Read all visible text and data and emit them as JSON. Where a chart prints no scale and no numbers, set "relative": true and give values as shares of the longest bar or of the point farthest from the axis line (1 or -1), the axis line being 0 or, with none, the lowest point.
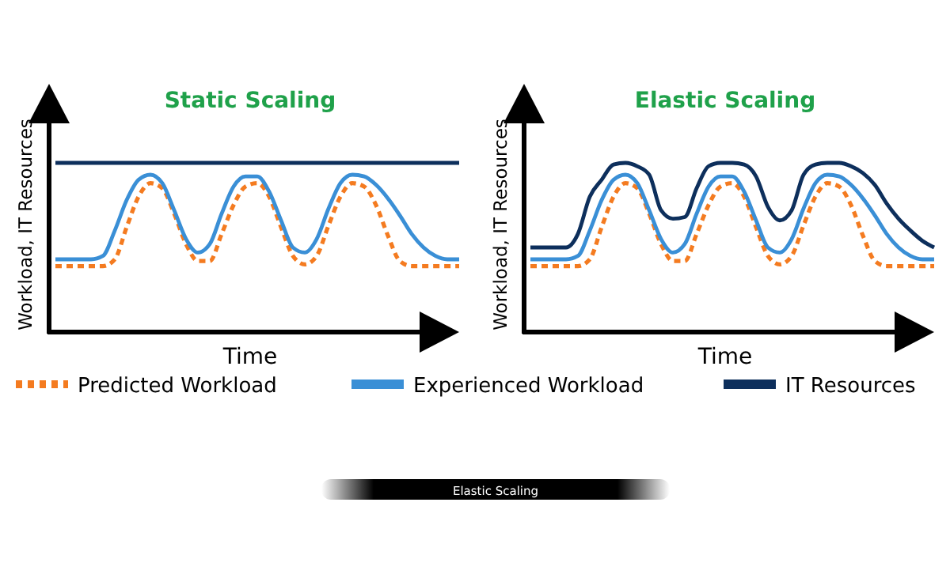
{
  "chart_data": [
    {
      "type": "line",
      "title": "Static Scaling",
      "xlabel": "Time",
      "ylabel": "Workload, IT Resources",
      "relative": true,
      "legend": "bottom",
      "categories": [
        null,
        null,
        null,
        null,
        null,
        null,
        null,
        null,
        null,
        null,
        null,
        null,
        null,
        null,
        null,
        null,
        null,
        null,
        null,
        null,
        null,
        null,
        null,
        null,
        null,
        null,
        null,
        null,
        null,
        null,
        null,
        null,
        null,
        null,
        null
      ],
      "series": [
        {
          "name": "Predicted Workload",
          "color": "#f47b20",
          "line_style": "dashed",
          "values": [
            0.39,
            0.39,
            0.39,
            0.39,
            0.39,
            0.43,
            0.62,
            0.8,
            0.88,
            0.85,
            0.7,
            0.52,
            0.42,
            0.42,
            0.58,
            0.75,
            0.86,
            0.88,
            0.8,
            0.62,
            0.45,
            0.4,
            0.45,
            0.63,
            0.8,
            0.88,
            0.86,
            0.75,
            0.57,
            0.42,
            0.39,
            0.39,
            0.39,
            0.39,
            0.39
          ]
        },
        {
          "name": "Experienced Workload",
          "color": "#3a8fd6",
          "line_style": "solid",
          "values": [
            0.43,
            0.43,
            0.43,
            0.43,
            0.45,
            0.6,
            0.78,
            0.9,
            0.93,
            0.88,
            0.72,
            0.55,
            0.47,
            0.52,
            0.7,
            0.86,
            0.92,
            0.92,
            0.83,
            0.66,
            0.5,
            0.47,
            0.55,
            0.73,
            0.88,
            0.93,
            0.92,
            0.87,
            0.79,
            0.69,
            0.58,
            0.5,
            0.45,
            0.43,
            0.43
          ]
        },
        {
          "name": "IT Resources",
          "color": "#0d2f5c",
          "line_style": "solid",
          "values": [
            1,
            1,
            1,
            1,
            1,
            1,
            1,
            1,
            1,
            1,
            1,
            1,
            1,
            1,
            1,
            1,
            1,
            1,
            1,
            1,
            1,
            1,
            1,
            1,
            1,
            1,
            1,
            1,
            1,
            1,
            1,
            1,
            1,
            1,
            1
          ]
        }
      ]
    },
    {
      "type": "line",
      "title": "Elastic Scaling",
      "xlabel": "Time",
      "ylabel": "Workload, IT Resources",
      "relative": true,
      "annotations": [
        "Elastic Scaling"
      ],
      "categories": [
        null,
        null,
        null,
        null,
        null,
        null,
        null,
        null,
        null,
        null,
        null,
        null,
        null,
        null,
        null,
        null,
        null,
        null,
        null,
        null,
        null,
        null,
        null,
        null,
        null,
        null,
        null,
        null,
        null,
        null,
        null,
        null,
        null,
        null,
        null
      ],
      "series": [
        {
          "color": "#f47b20",
          "line_style": "dashed",
          "values": [
            0.39,
            0.39,
            0.39,
            0.39,
            0.39,
            0.43,
            0.62,
            0.8,
            0.88,
            0.85,
            0.7,
            0.52,
            0.42,
            0.42,
            0.58,
            0.75,
            0.86,
            0.88,
            0.8,
            0.62,
            0.45,
            0.4,
            0.45,
            0.63,
            0.8,
            0.88,
            0.86,
            0.75,
            0.57,
            0.42,
            0.39,
            0.39,
            0.39,
            0.39,
            0.39
          ]
        },
        {
          "color": "#3a8fd6",
          "line_style": "solid",
          "values": [
            0.43,
            0.43,
            0.43,
            0.43,
            0.45,
            0.6,
            0.78,
            0.9,
            0.93,
            0.88,
            0.72,
            0.55,
            0.47,
            0.52,
            0.7,
            0.86,
            0.92,
            0.92,
            0.83,
            0.66,
            0.5,
            0.47,
            0.55,
            0.73,
            0.88,
            0.93,
            0.92,
            0.87,
            0.79,
            0.69,
            0.58,
            0.5,
            0.45,
            0.43,
            0.43
          ]
        },
        {
          "color": "#0d2f5c",
          "line_style": "solid",
          "values": [
            0.5,
            0.5,
            0.5,
            0.5,
            0.58,
            0.8,
            0.9,
            0.99,
            1,
            0.98,
            0.93,
            0.72,
            0.67,
            0.68,
            0.85,
            0.98,
            1,
            1,
            0.99,
            0.92,
            0.74,
            0.66,
            0.72,
            0.93,
            0.99,
            1,
            1,
            0.98,
            0.94,
            0.87,
            0.76,
            0.67,
            0.6,
            0.54,
            0.5
          ]
        }
      ]
    }
  ]
}
